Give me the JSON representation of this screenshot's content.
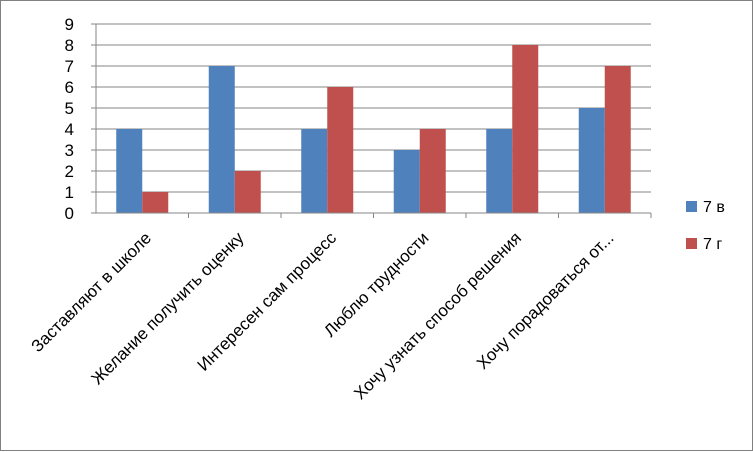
{
  "chart_data": {
    "type": "bar",
    "categories": [
      "Заставляют в школе",
      "Желание получить оценку",
      "Интересен сам процесс",
      "Люблю трудности",
      "Хочу узнать способ решения",
      "Хочу порадоваться от..."
    ],
    "series": [
      {
        "name": "7 в",
        "values": [
          4,
          7,
          4,
          3,
          4,
          5
        ],
        "color": "#4F81BD"
      },
      {
        "name": "7  г",
        "values": [
          1,
          2,
          6,
          4,
          8,
          7
        ],
        "color": "#C0504D"
      }
    ],
    "title": "",
    "xlabel": "",
    "ylabel": "",
    "ylim": [
      0,
      9
    ],
    "yticks": [
      "0",
      "1",
      "2",
      "3",
      "4",
      "5",
      "6",
      "7",
      "8",
      "9"
    ],
    "grid": true,
    "legend_position": "right"
  }
}
